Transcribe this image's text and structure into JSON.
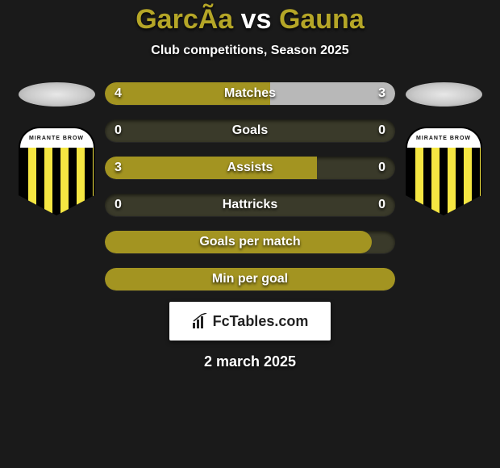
{
  "title": {
    "left_name": "GarcÃ­a",
    "vs": "vs",
    "right_name": "Gauna",
    "left_color": "#b5a627",
    "right_color": "#b5a627",
    "vs_color": "#ffffff"
  },
  "subtitle": "Club competitions, Season 2025",
  "date": "2 march 2025",
  "club_badge": {
    "top_text": "MIRANTE BROW",
    "stripe_color_a": "#000000",
    "stripe_color_b": "#f5e642"
  },
  "colors": {
    "background": "#1a1a1a",
    "bar_track": "#3a3a2a",
    "fill_olive": "#a39421",
    "fill_silver": "#b8b8b8",
    "text": "#ffffff"
  },
  "bars": [
    {
      "label": "Matches",
      "left_value": "4",
      "right_value": "3",
      "left_width_pct": 57,
      "right_width_pct": 43,
      "left_fill": "#a39421",
      "right_fill": "#b8b8b8"
    },
    {
      "label": "Goals",
      "left_value": "0",
      "right_value": "0",
      "left_width_pct": 0,
      "right_width_pct": 0,
      "left_fill": "#a39421",
      "right_fill": "#b8b8b8"
    },
    {
      "label": "Assists",
      "left_value": "3",
      "right_value": "0",
      "left_width_pct": 73,
      "right_width_pct": 0,
      "left_fill": "#a39421",
      "right_fill": "#b8b8b8"
    },
    {
      "label": "Hattricks",
      "left_value": "0",
      "right_value": "0",
      "left_width_pct": 0,
      "right_width_pct": 0,
      "left_fill": "#a39421",
      "right_fill": "#b8b8b8"
    },
    {
      "label": "Goals per match",
      "left_value": "",
      "right_value": "",
      "full_fill": "#a39421",
      "full_width_pct": 92
    },
    {
      "label": "Min per goal",
      "left_value": "",
      "right_value": "",
      "full_fill": "#a39421",
      "full_width_pct": 100
    }
  ],
  "fctables": {
    "text": "FcTables.com"
  }
}
